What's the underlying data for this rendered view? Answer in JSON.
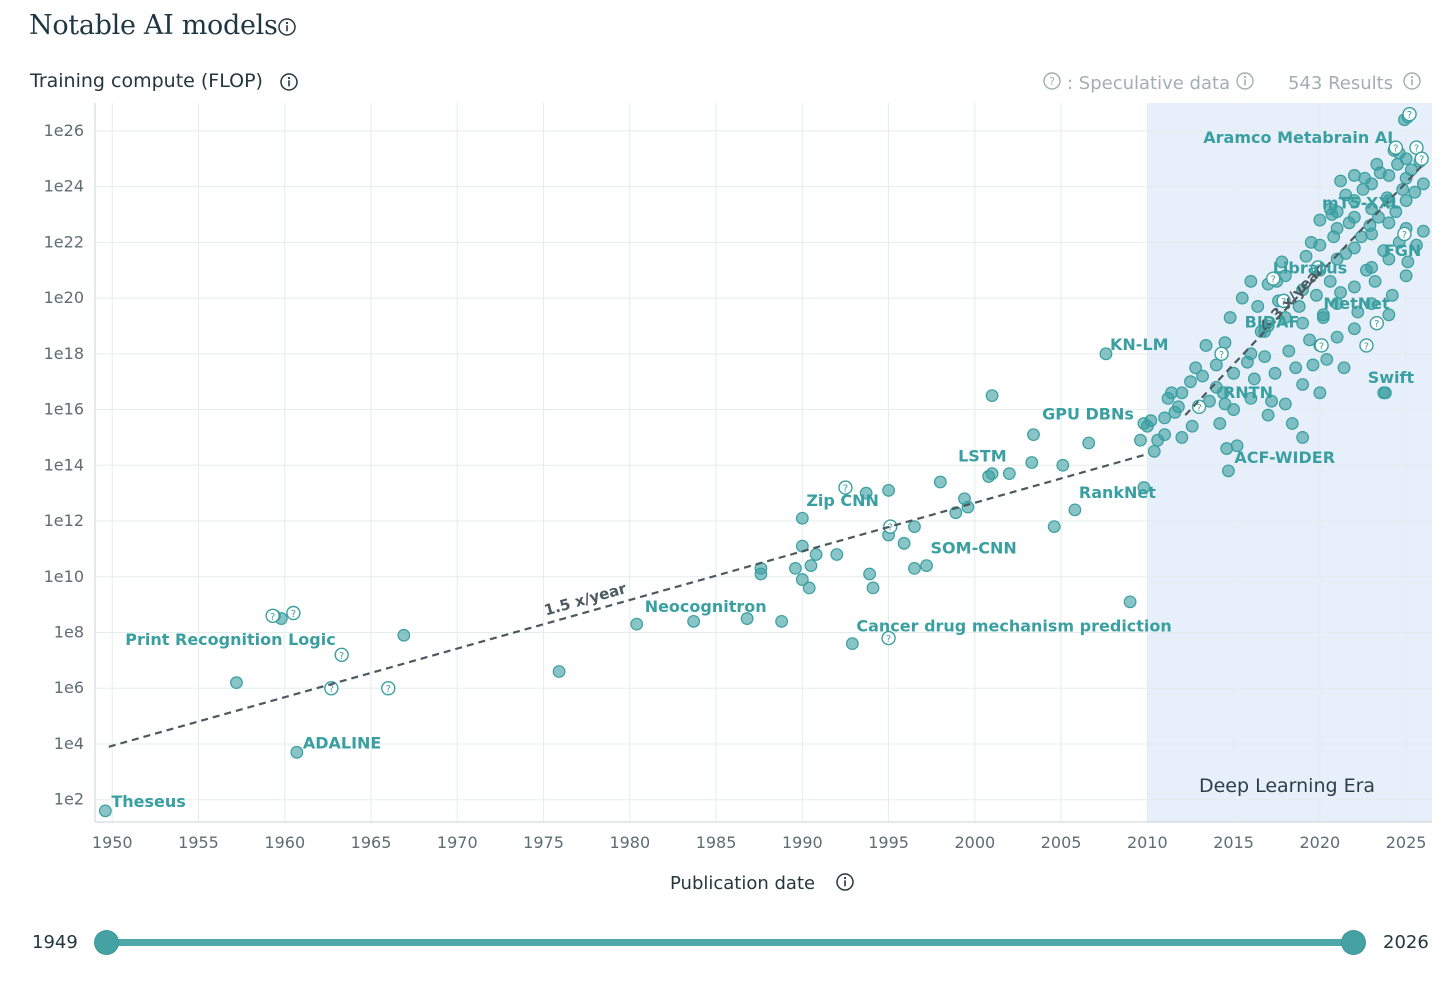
{
  "header": {
    "title": "Notable AI models",
    "y_axis_label": "Training compute (FLOP)",
    "speculative_label": ": Speculative data",
    "results_label": "543 Results",
    "x_axis_label": "Publication date"
  },
  "range_slider": {
    "min_label": "1949",
    "max_label": "2026",
    "min": 1949,
    "max": 2026
  },
  "colors": {
    "point": "#3a9fa0",
    "label": "#3a9fa0",
    "era": "#e6effa",
    "trend": "#4a5a60",
    "grid": "#e3eded"
  },
  "chart_data": {
    "type": "scatter",
    "xlabel": "Publication date",
    "ylabel": "Training compute (FLOP)",
    "x_ticks": [
      "1950",
      "1955",
      "1960",
      "1965",
      "1970",
      "1975",
      "1980",
      "1985",
      "1990",
      "1995",
      "2000",
      "2005",
      "2010",
      "2015",
      "2020",
      "2025"
    ],
    "y_ticks": [
      "1e2",
      "1e4",
      "1e6",
      "1e8",
      "1e10",
      "1e12",
      "1e14",
      "1e16",
      "1e18",
      "1e20",
      "1e22",
      "1e24",
      "1e26"
    ],
    "xlim": [
      1949,
      2026.5
    ],
    "ylim_log10": [
      1.2,
      27
    ],
    "era": {
      "label": "Deep Learning Era",
      "start": 2010,
      "end": 2026.5
    },
    "trend_lines": [
      {
        "label": "1.5 x/year",
        "from": [
          1949.8,
          3.9
        ],
        "to": [
          2010,
          14.4
        ]
      },
      {
        "label": "4.3 x/year",
        "from": [
          2012.2,
          15.8
        ],
        "to": [
          2026,
          24.8
        ]
      }
    ],
    "labeled_points": [
      {
        "name": "Theseus",
        "x": 1949.6,
        "y": 1.6
      },
      {
        "name": "ADALINE",
        "x": 1960.7,
        "y": 3.7
      },
      {
        "name": "Print Recognition Logic",
        "x": 1963.3,
        "y": 7.2,
        "speculative": true
      },
      {
        "name": "Neocognitron",
        "x": 1980.4,
        "y": 8.3
      },
      {
        "name": "Cancer drug mechanism prediction",
        "x": 1992.9,
        "y": 7.6
      },
      {
        "name": "Zip CNN",
        "x": 1990,
        "y": 12.1
      },
      {
        "name": "SOM-CNN",
        "x": 1997.2,
        "y": 10.4
      },
      {
        "name": "LSTM",
        "x": 2001,
        "y": 13.7
      },
      {
        "name": "RankNet",
        "x": 2005.8,
        "y": 12.4
      },
      {
        "name": "GPU DBNs",
        "x": 2009.8,
        "y": 15.5
      },
      {
        "name": "KN-LM",
        "x": 2007.6,
        "y": 18
      },
      {
        "name": "ACF-WIDER",
        "x": 2014.7,
        "y": 13.8
      },
      {
        "name": "RNTN",
        "x": 2014.5,
        "y": 16.2
      },
      {
        "name": "BIDAF",
        "x": 2016.8,
        "y": 18.8
      },
      {
        "name": "Swift",
        "x": 2023.7,
        "y": 16.6
      },
      {
        "name": "MetNet",
        "x": 2020.2,
        "y": 19.4
      },
      {
        "name": "Libratus",
        "x": 2017.5,
        "y": 20.6
      },
      {
        "name": "FGN",
        "x": 2025.1,
        "y": 21.3
      },
      {
        "name": "mT5-XXL",
        "x": 2020.7,
        "y": 23
      },
      {
        "name": "Aramco Metabrain AI",
        "x": 2024.6,
        "y": 25.2
      }
    ],
    "points": [
      [
        1957.2,
        6.2
      ],
      [
        1959.4,
        8.6
      ],
      [
        1959.8,
        8.5
      ],
      [
        1966.9,
        7.9
      ],
      [
        1975.9,
        6.6
      ],
      [
        1983.7,
        8.4
      ],
      [
        1986.8,
        8.5
      ],
      [
        1987.6,
        10.1
      ],
      [
        1987.6,
        10.3
      ],
      [
        1988.8,
        8.4
      ],
      [
        1989.6,
        10.3
      ],
      [
        1990,
        9.9
      ],
      [
        1990,
        11.1
      ],
      [
        1990.4,
        9.6
      ],
      [
        1990.5,
        10.4
      ],
      [
        1990.8,
        10.8
      ],
      [
        1992,
        10.8
      ],
      [
        1993.7,
        13
      ],
      [
        1993.9,
        10.1
      ],
      [
        1994.1,
        9.6
      ],
      [
        1995,
        13.1
      ],
      [
        1995,
        11.5
      ],
      [
        1995.9,
        11.2
      ],
      [
        1996.5,
        10.3
      ],
      [
        1996.5,
        11.8
      ],
      [
        1998,
        13.4
      ],
      [
        1998.9,
        12.3
      ],
      [
        1999.4,
        12.8
      ],
      [
        1999.6,
        12.5
      ],
      [
        2000.8,
        13.6
      ],
      [
        2001,
        16.5
      ],
      [
        2002,
        13.7
      ],
      [
        2003.3,
        14.1
      ],
      [
        2003.4,
        15.1
      ],
      [
        2004.6,
        11.8
      ],
      [
        2005.1,
        14
      ],
      [
        2006.6,
        14.8
      ],
      [
        2009,
        9.1
      ],
      [
        2009.6,
        14.9
      ],
      [
        2009.8,
        13.2
      ],
      [
        2010,
        15.4
      ],
      [
        2010.2,
        15.6
      ],
      [
        2010.4,
        14.5
      ],
      [
        2010.6,
        14.9
      ],
      [
        2011,
        15.1
      ],
      [
        2011,
        15.7
      ],
      [
        2011.2,
        16.4
      ],
      [
        2011.4,
        16.6
      ],
      [
        2011.6,
        15.9
      ],
      [
        2011.8,
        16.1
      ],
      [
        2012,
        15
      ],
      [
        2012,
        16.6
      ],
      [
        2012.5,
        17
      ],
      [
        2012.6,
        15.4
      ],
      [
        2012.8,
        17.5
      ],
      [
        2013,
        16.1
      ],
      [
        2013.2,
        17.2
      ],
      [
        2013.4,
        18.3
      ],
      [
        2013.6,
        16.3
      ],
      [
        2014,
        16.8
      ],
      [
        2014,
        17.6
      ],
      [
        2014.2,
        15.5
      ],
      [
        2014.4,
        16.6
      ],
      [
        2014.5,
        18.4
      ],
      [
        2014.6,
        14.6
      ],
      [
        2014.8,
        19.3
      ],
      [
        2015,
        16
      ],
      [
        2015,
        17.3
      ],
      [
        2015.2,
        14.7
      ],
      [
        2015.5,
        20
      ],
      [
        2015.8,
        17.7
      ],
      [
        2016,
        16.4
      ],
      [
        2016,
        18
      ],
      [
        2016,
        20.6
      ],
      [
        2016.2,
        17.1
      ],
      [
        2016.4,
        19.7
      ],
      [
        2016.6,
        18.8
      ],
      [
        2016.8,
        17.9
      ],
      [
        2017,
        15.8
      ],
      [
        2017,
        19
      ],
      [
        2017,
        20.5
      ],
      [
        2017.2,
        16.3
      ],
      [
        2017.4,
        17.3
      ],
      [
        2017.6,
        19.9
      ],
      [
        2017.8,
        21.3
      ],
      [
        2018,
        16.2
      ],
      [
        2018,
        19.3
      ],
      [
        2018,
        20.8
      ],
      [
        2018.2,
        18.1
      ],
      [
        2018.4,
        15.5
      ],
      [
        2018.6,
        17.5
      ],
      [
        2018.8,
        19.7
      ],
      [
        2019,
        15
      ],
      [
        2019,
        16.9
      ],
      [
        2019,
        19.1
      ],
      [
        2019,
        20.3
      ],
      [
        2019.2,
        21.5
      ],
      [
        2019.4,
        18.5
      ],
      [
        2019.6,
        17.6
      ],
      [
        2019.8,
        20.1
      ],
      [
        2020,
        16.6
      ],
      [
        2020,
        18.3
      ],
      [
        2020,
        21
      ],
      [
        2020,
        21.9
      ],
      [
        2020,
        22.8
      ],
      [
        2020.2,
        19.3
      ],
      [
        2020.4,
        17.8
      ],
      [
        2020.6,
        20.6
      ],
      [
        2020.8,
        22.2
      ],
      [
        2021,
        18.6
      ],
      [
        2021,
        19.8
      ],
      [
        2021,
        21.4
      ],
      [
        2021,
        22.5
      ],
      [
        2021,
        23.1
      ],
      [
        2021.2,
        20.2
      ],
      [
        2021.4,
        17.5
      ],
      [
        2021.5,
        21.6
      ],
      [
        2021.7,
        22.7
      ],
      [
        2022,
        18.9
      ],
      [
        2022,
        20.4
      ],
      [
        2022,
        21.8
      ],
      [
        2022,
        22.9
      ],
      [
        2022,
        23.5
      ],
      [
        2022.2,
        19.5
      ],
      [
        2022.4,
        22.2
      ],
      [
        2022.5,
        23.9
      ],
      [
        2022.7,
        21
      ],
      [
        2022.9,
        22.6
      ],
      [
        2023,
        19.8
      ],
      [
        2023,
        21.1
      ],
      [
        2023,
        22.3
      ],
      [
        2023,
        23.2
      ],
      [
        2023,
        24.1
      ],
      [
        2023.2,
        20.6
      ],
      [
        2023.4,
        22.9
      ],
      [
        2023.5,
        24.5
      ],
      [
        2023.7,
        21.7
      ],
      [
        2023.8,
        16.6
      ],
      [
        2023.9,
        23.6
      ],
      [
        2024,
        19.4
      ],
      [
        2024,
        21.4
      ],
      [
        2024,
        22.7
      ],
      [
        2024,
        23.5
      ],
      [
        2024,
        24.4
      ],
      [
        2024.2,
        20.1
      ],
      [
        2024.4,
        23.1
      ],
      [
        2024.5,
        24.8
      ],
      [
        2024.6,
        22
      ],
      [
        2024.8,
        23.9
      ],
      [
        2025,
        20.8
      ],
      [
        2025,
        22.5
      ],
      [
        2025,
        23.5
      ],
      [
        2025,
        24.3
      ],
      [
        2025,
        25
      ],
      [
        2025.1,
        26.5
      ],
      [
        2025.3,
        24.6
      ],
      [
        2025.5,
        23.8
      ],
      [
        2025.6,
        21.9
      ],
      [
        2025.8,
        24.9
      ],
      [
        2026,
        22.4
      ],
      [
        2026,
        24.1
      ],
      [
        2022.6,
        24.3
      ],
      [
        2021.5,
        23.7
      ],
      [
        2020.6,
        23.2
      ],
      [
        2019.5,
        22
      ],
      [
        2021.2,
        24.2
      ],
      [
        2022,
        24.4
      ],
      [
        2023.3,
        24.8
      ],
      [
        2024.3,
        25.3
      ],
      [
        2024.9,
        26.4
      ]
    ],
    "speculative_points": [
      [
        1959.3,
        8.6
      ],
      [
        1960.5,
        8.7
      ],
      [
        1962.7,
        6
      ],
      [
        1966,
        6
      ],
      [
        1992.5,
        13.2
      ],
      [
        1995,
        7.8
      ],
      [
        1995.1,
        11.8
      ],
      [
        2013,
        16.1
      ],
      [
        2014.3,
        18
      ],
      [
        2017.3,
        20.7
      ],
      [
        2017.9,
        19.9
      ],
      [
        2019.9,
        21.1
      ],
      [
        2020.1,
        18.3
      ],
      [
        2022.7,
        18.3
      ],
      [
        2023.3,
        19.1
      ],
      [
        2024.4,
        25.4
      ],
      [
        2025.2,
        26.6
      ],
      [
        2025.6,
        25.4
      ],
      [
        2025.9,
        25
      ],
      [
        2024.9,
        22.3
      ]
    ]
  }
}
